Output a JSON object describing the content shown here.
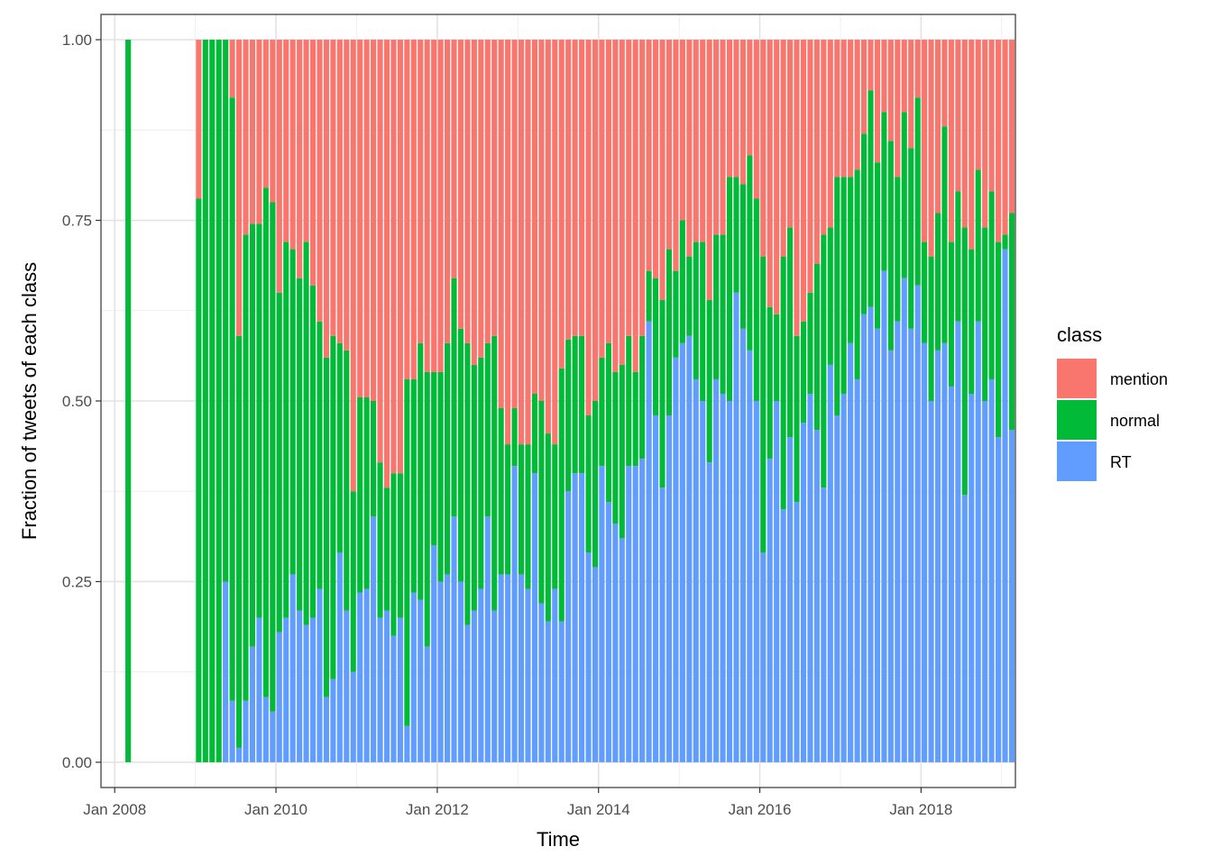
{
  "chart_data": {
    "type": "bar",
    "stacked": true,
    "title": "",
    "xlabel": "Time",
    "ylabel": "Fraction of tweets of each class",
    "xlim": [
      2007.83,
      2019.17
    ],
    "ylim": [
      -0.035,
      1.035
    ],
    "x_ticks": [
      {
        "value": 2008,
        "label": "Jan 2008"
      },
      {
        "value": 2010,
        "label": "Jan 2010"
      },
      {
        "value": 2012,
        "label": "Jan 2012"
      },
      {
        "value": 2014,
        "label": "Jan 2014"
      },
      {
        "value": 2016,
        "label": "Jan 2016"
      },
      {
        "value": 2018,
        "label": "Jan 2018"
      }
    ],
    "y_ticks": [
      {
        "value": 0.0,
        "label": "0.00"
      },
      {
        "value": 0.25,
        "label": "0.25"
      },
      {
        "value": 0.5,
        "label": "0.50"
      },
      {
        "value": 0.75,
        "label": "0.75"
      },
      {
        "value": 1.0,
        "label": "1.00"
      }
    ],
    "grid": true,
    "legend": {
      "title": "class",
      "position": "right",
      "entries": [
        {
          "name": "mention",
          "color": "#F8766D"
        },
        {
          "name": "normal",
          "color": "#00BA38"
        },
        {
          "name": "RT",
          "color": "#619CFF"
        }
      ]
    },
    "colors": {
      "mention": "#F8766D",
      "normal": "#00BA38",
      "RT": "#619CFF"
    },
    "bar_months": 1,
    "start": {
      "year": 2009,
      "month": 1
    },
    "extra_points": [
      {
        "year": 2008,
        "month": 3,
        "RT": 0.0,
        "normal": 1.0
      }
    ],
    "series": [
      {
        "name": "RT",
        "values": [
          0,
          0,
          0,
          0,
          0.25,
          0.085,
          0.02,
          0.085,
          0.16,
          0.2,
          0.09,
          0.07,
          0.18,
          0.2,
          0.26,
          0.21,
          0.19,
          0.2,
          0.24,
          0.09,
          0.115,
          0.29,
          0.21,
          0.125,
          0.235,
          0.24,
          0.34,
          0.2,
          0.21,
          0.175,
          0.2,
          0.05,
          0.235,
          0.225,
          0.16,
          0.3,
          0.25,
          0.26,
          0.34,
          0.25,
          0.19,
          0.21,
          0.24,
          0.34,
          0.21,
          0.26,
          0.26,
          0.41,
          0.26,
          0.24,
          0.4,
          0.22,
          0.195,
          0.24,
          0.195,
          0.375,
          0.4,
          0.4,
          0.29,
          0.27,
          0.41,
          0.36,
          0.33,
          0.31,
          0.41,
          0.41,
          0.42,
          0.61,
          0.48,
          0.38,
          0.48,
          0.56,
          0.58,
          0.59,
          0.53,
          0.5,
          0.415,
          0.53,
          0.51,
          0.5,
          0.65,
          0.6,
          0.57,
          0.5,
          0.29,
          0.42,
          0.5,
          0.35,
          0.45,
          0.36,
          0.47,
          0.51,
          0.46,
          0.38,
          0.55,
          0.48,
          0.51,
          0.58,
          0.53,
          0.62,
          0.63,
          0.6,
          0.68,
          0.57,
          0.61,
          0.67,
          0.6,
          0.66,
          0.58,
          0.5,
          0.57,
          0.58,
          0.52,
          0.61,
          0.37,
          0.51,
          0.61,
          0.5,
          0.53,
          0.45,
          0.71,
          0.46
        ]
      },
      {
        "name": "normal",
        "values": [
          0.78,
          1.0,
          1.0,
          1.0,
          0.75,
          0.835,
          0.57,
          0.645,
          0.585,
          0.545,
          0.705,
          0.705,
          0.47,
          0.52,
          0.45,
          0.46,
          0.53,
          0.46,
          0.37,
          0.47,
          0.475,
          0.29,
          0.36,
          0.25,
          0.27,
          0.265,
          0.16,
          0.215,
          0.17,
          0.225,
          0.2,
          0.48,
          0.295,
          0.355,
          0.38,
          0.24,
          0.29,
          0.32,
          0.33,
          0.35,
          0.39,
          0.34,
          0.32,
          0.24,
          0.38,
          0.23,
          0.18,
          0.08,
          0.18,
          0.2,
          0.11,
          0.28,
          0.26,
          0.2,
          0.35,
          0.21,
          0.19,
          0.19,
          0.19,
          0.23,
          0.15,
          0.22,
          0.21,
          0.24,
          0.18,
          0.13,
          0.17,
          0.07,
          0.19,
          0.26,
          0.23,
          0.12,
          0.17,
          0.11,
          0.19,
          0.22,
          0.225,
          0.2,
          0.22,
          0.31,
          0.16,
          0.2,
          0.27,
          0.28,
          0.41,
          0.21,
          0.12,
          0.35,
          0.29,
          0.23,
          0.14,
          0.14,
          0.23,
          0.35,
          0.19,
          0.33,
          0.3,
          0.23,
          0.29,
          0.25,
          0.3,
          0.23,
          0.22,
          0.29,
          0.2,
          0.23,
          0.25,
          0.26,
          0.14,
          0.2,
          0.19,
          0.3,
          0.2,
          0.18,
          0.37,
          0.2,
          0.21,
          0.24,
          0.26,
          0.27,
          0.02,
          0.3
        ]
      },
      {
        "name": "mention",
        "values": [
          0.22,
          0,
          0,
          0,
          0,
          0.08,
          0.41,
          0.27,
          0.255,
          0.255,
          0.205,
          0.225,
          0.35,
          0.28,
          0.29,
          0.33,
          0.28,
          0.34,
          0.39,
          0.44,
          0.41,
          0.42,
          0.43,
          0.625,
          0.495,
          0.495,
          0.5,
          0.585,
          0.62,
          0.6,
          0.6,
          0.47,
          0.47,
          0.42,
          0.46,
          0.46,
          0.46,
          0.42,
          0.33,
          0.4,
          0.42,
          0.45,
          0.44,
          0.42,
          0.41,
          0.51,
          0.56,
          0.51,
          0.56,
          0.56,
          0.49,
          0.5,
          0.545,
          0.56,
          0.455,
          0.415,
          0.41,
          0.41,
          0.52,
          0.5,
          0.44,
          0.42,
          0.46,
          0.45,
          0.41,
          0.46,
          0.41,
          0.32,
          0.33,
          0.36,
          0.29,
          0.32,
          0.25,
          0.3,
          0.28,
          0.28,
          0.36,
          0.27,
          0.27,
          0.19,
          0.19,
          0.2,
          0.16,
          0.22,
          0.3,
          0.37,
          0.38,
          0.3,
          0.26,
          0.41,
          0.39,
          0.35,
          0.31,
          0.27,
          0.26,
          0.19,
          0.19,
          0.19,
          0.18,
          0.13,
          0.07,
          0.17,
          0.1,
          0.14,
          0.19,
          0.1,
          0.15,
          0.08,
          0.28,
          0.3,
          0.24,
          0.12,
          0.28,
          0.21,
          0.26,
          0.29,
          0.18,
          0.26,
          0.21,
          0.28,
          0.27,
          0.24
        ]
      }
    ]
  }
}
